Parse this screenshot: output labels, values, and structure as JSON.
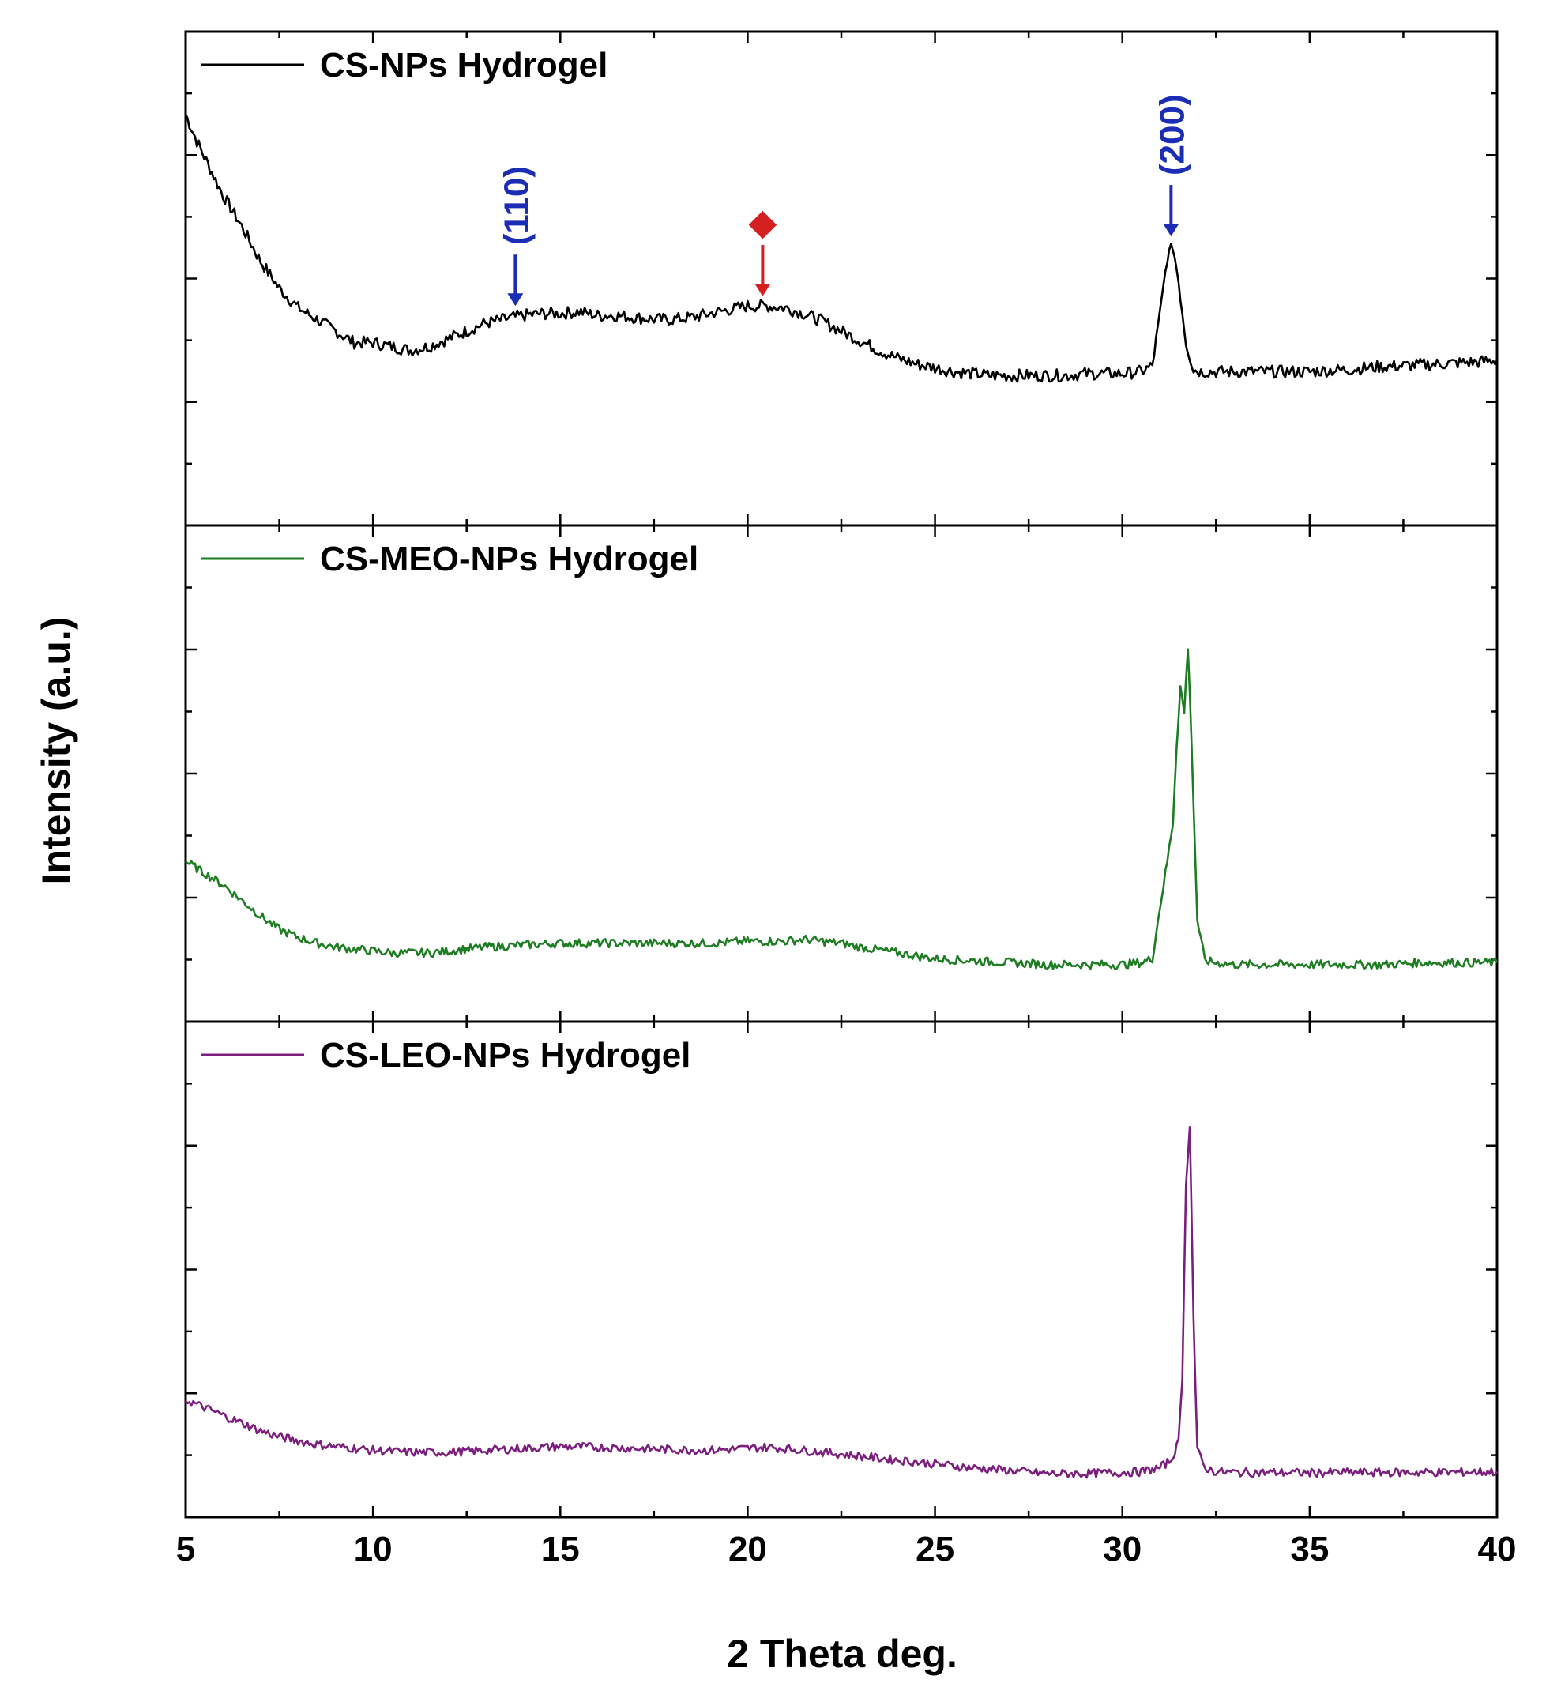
{
  "chart_data": {
    "type": "line",
    "xlabel": "2 Theta deg.",
    "ylabel": "Intensity (a.u.)",
    "xlim": [
      5,
      40
    ],
    "xticks": [
      5,
      10,
      15,
      20,
      25,
      30,
      35,
      40
    ],
    "grid": false,
    "yscale_shared": false,
    "panels": [
      {
        "legend": "CS-NPs Hydrogel",
        "color": "#000000",
        "ylim": [
          0,
          100
        ],
        "x": [
          5,
          5.3,
          5.7,
          6.0,
          6.5,
          7.0,
          7.5,
          8.0,
          8.5,
          9.0,
          9.5,
          10,
          10.5,
          11,
          11.5,
          12,
          12.5,
          13,
          13.5,
          14,
          14.5,
          15,
          15.5,
          16,
          16.5,
          17,
          17.5,
          18,
          18.5,
          19,
          19.5,
          20,
          20.5,
          21,
          21.5,
          22,
          22.5,
          23,
          23.5,
          24,
          24.5,
          25,
          25.5,
          26,
          26.5,
          27,
          27.5,
          28,
          28.5,
          29,
          29.5,
          30,
          30.5,
          30.8,
          31.0,
          31.2,
          31.35,
          31.5,
          31.7,
          31.9,
          32.1,
          32.5,
          33,
          33.5,
          34,
          34.5,
          35,
          35.5,
          36,
          36.5,
          37,
          37.5,
          38,
          38.5,
          39,
          39.5,
          40
        ],
        "y": [
          95,
          88,
          80,
          74,
          66,
          57,
          50,
          45,
          42,
          39,
          36,
          36,
          35,
          34,
          35,
          37,
          39,
          41,
          42,
          43,
          43.5,
          43.5,
          44,
          43,
          43,
          42.5,
          42,
          42,
          42.5,
          43.5,
          44.5,
          45.5,
          45.5,
          45,
          43.5,
          41.5,
          39,
          36.5,
          34,
          32,
          30.5,
          29.5,
          28.5,
          28,
          27.5,
          27.5,
          27.5,
          27.5,
          27.5,
          28,
          28,
          28,
          28.5,
          30,
          43,
          58,
          61,
          52,
          36,
          29,
          28.5,
          28.5,
          28.5,
          28.5,
          28.5,
          28.5,
          28.5,
          28.8,
          29,
          29.5,
          29.8,
          30,
          30.3,
          30.5,
          30.8,
          31,
          31.5
        ]
      },
      {
        "legend": "CS-MEO-NPs Hydrogel",
        "color": "#1e7d22",
        "ylim": [
          0,
          100
        ],
        "x": [
          5,
          5.5,
          6.0,
          6.5,
          7.0,
          7.5,
          8.0,
          8.5,
          9.0,
          9.5,
          10,
          10.5,
          11,
          11.5,
          12,
          12.5,
          13,
          14,
          15,
          16,
          17,
          18,
          19,
          20,
          20.5,
          21,
          21.5,
          22,
          22.5,
          23,
          24,
          25,
          26,
          27,
          28,
          29,
          30,
          30.5,
          30.8,
          31.0,
          31.2,
          31.35,
          31.45,
          31.55,
          31.65,
          31.75,
          31.85,
          32.0,
          32.2,
          32.5,
          33,
          34,
          35,
          36,
          37,
          38,
          39,
          40
        ],
        "y": [
          30,
          27,
          24,
          20,
          16,
          12.5,
          10.5,
          9,
          8,
          7.5,
          7,
          6.5,
          6.5,
          6.5,
          7,
          7.5,
          8,
          8.5,
          9,
          9,
          9,
          9,
          9,
          9.5,
          9.5,
          9.5,
          10,
          9.5,
          9,
          8,
          6.5,
          5,
          4.5,
          4,
          3.5,
          3.5,
          3.5,
          4,
          5,
          18,
          30,
          40,
          60,
          75,
          68,
          85,
          60,
          15,
          4.5,
          4,
          3.5,
          3.5,
          3.5,
          3.5,
          3.5,
          4,
          4,
          4
        ]
      },
      {
        "legend": "CS-LEO-NPs Hydrogel",
        "color": "#7b1f7e",
        "ylim": [
          0,
          100
        ],
        "x": [
          5,
          5.5,
          6.0,
          6.5,
          7.0,
          7.5,
          8.0,
          8.5,
          9.0,
          9.5,
          10,
          11,
          12,
          13,
          14,
          15,
          16,
          17,
          18,
          19,
          20,
          20.5,
          21,
          22,
          23,
          24,
          25,
          26,
          27,
          28,
          29,
          30,
          30.5,
          31.0,
          31.3,
          31.5,
          31.6,
          31.7,
          31.8,
          31.9,
          32.0,
          32.2,
          32.5,
          33,
          34,
          35,
          36,
          37,
          38,
          39,
          40
        ],
        "y": [
          19,
          17,
          15,
          13,
          11,
          9.5,
          8.5,
          7.5,
          7,
          6.5,
          6,
          5.5,
          5.5,
          6,
          6.5,
          7,
          6.8,
          6.5,
          6.2,
          6,
          6.5,
          6.8,
          6.5,
          5.5,
          4.5,
          3.5,
          2.5,
          1.5,
          0.8,
          0,
          0,
          0.3,
          0.5,
          1.5,
          3.5,
          8,
          25,
          75,
          90,
          40,
          6,
          1.5,
          0.5,
          0.3,
          0.3,
          0.2,
          0.3,
          0.3,
          0.3,
          0.4,
          0.5
        ]
      }
    ],
    "annotations": [
      {
        "panel": 0,
        "text": "(110)",
        "x": 13.8,
        "color": "#1b2db5",
        "arrow": true
      },
      {
        "panel": 0,
        "text": "(200)",
        "x": 31.3,
        "color": "#1b2db5",
        "arrow": true
      },
      {
        "panel": 0,
        "text": "◆",
        "x": 20.4,
        "color": "#d42020",
        "arrow": true
      }
    ]
  }
}
